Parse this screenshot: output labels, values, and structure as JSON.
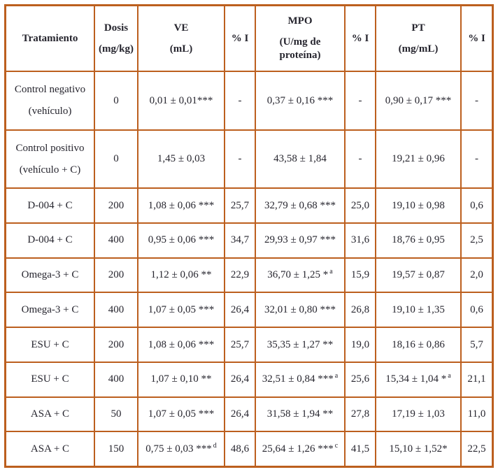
{
  "accent_color": "#bc5f1e",
  "text_color": "#26252e",
  "table": {
    "headers": [
      {
        "line1": "Tratamiento",
        "line2": ""
      },
      {
        "line1": "Dosis",
        "line2": "(mg/kg)"
      },
      {
        "line1": "VE",
        "line2": "(mL)"
      },
      {
        "line1": "% I",
        "line2": ""
      },
      {
        "line1": "MPO",
        "line2": "(U/mg de proteína)"
      },
      {
        "line1": "% I",
        "line2": ""
      },
      {
        "line1": "PT",
        "line2": "(mg/mL)"
      },
      {
        "line1": "% I",
        "line2": ""
      }
    ],
    "rows": [
      {
        "name": "Control negativo",
        "name2": "(vehículo)",
        "dose": "0",
        "ve": "0,01 ± 0,01***",
        "ve_sup": "",
        "ve_i": "-",
        "mpo": "0,37 ± 0,16 ***",
        "mpo_sup": "",
        "mpo_i": "-",
        "pt": "0,90 ± 0,17 ***",
        "pt_sup": "",
        "pt_i": "-"
      },
      {
        "name": "Control positivo",
        "name2": "(vehículo + C)",
        "dose": "0",
        "ve": "1,45 ± 0,03",
        "ve_sup": "",
        "ve_i": "-",
        "mpo": "43,58 ± 1,84",
        "mpo_sup": "",
        "mpo_i": "-",
        "pt": "19,21 ± 0,96",
        "pt_sup": "",
        "pt_i": "-"
      },
      {
        "name": "D-004 + C",
        "name2": "",
        "dose": "200",
        "ve": "1,08 ± 0,06 ***",
        "ve_sup": "",
        "ve_i": "25,7",
        "mpo": "32,79 ± 0,68 ***",
        "mpo_sup": "",
        "mpo_i": "25,0",
        "pt": "19,10 ± 0,98",
        "pt_sup": "",
        "pt_i": "0,6"
      },
      {
        "name": "D-004 + C",
        "name2": "",
        "dose": "400",
        "ve": "0,95 ± 0,06 ***",
        "ve_sup": "",
        "ve_i": "34,7",
        "mpo": "29,93 ± 0,97 ***",
        "mpo_sup": "",
        "mpo_i": "31,6",
        "pt": "18,76 ± 0,95",
        "pt_sup": "",
        "pt_i": "2,5"
      },
      {
        "name": "Omega-3 + C",
        "name2": "",
        "dose": "200",
        "ve": "1,12 ± 0,06 **",
        "ve_sup": "",
        "ve_i": "22,9",
        "mpo": "36,70 ± 1,25 *",
        "mpo_sup": "a",
        "mpo_i": "15,9",
        "pt": "19,57 ± 0,87",
        "pt_sup": "",
        "pt_i": "2,0"
      },
      {
        "name": "Omega-3 + C",
        "name2": "",
        "dose": "400",
        "ve": "1,07 ± 0,05 ***",
        "ve_sup": "",
        "ve_i": "26,4",
        "mpo": "32,01 ± 0,80 ***",
        "mpo_sup": "",
        "mpo_i": "26,8",
        "pt": "19,10 ± 1,35",
        "pt_sup": "",
        "pt_i": "0,6"
      },
      {
        "name": "ESU + C",
        "name2": "",
        "dose": "200",
        "ve": "1,08 ± 0,06 ***",
        "ve_sup": "",
        "ve_i": "25,7",
        "mpo": "35,35 ± 1,27 **",
        "mpo_sup": "",
        "mpo_i": "19,0",
        "pt": "18,16 ± 0,86",
        "pt_sup": "",
        "pt_i": "5,7"
      },
      {
        "name": "ESU + C",
        "name2": "",
        "dose": "400",
        "ve": "1,07 ± 0,10 **",
        "ve_sup": "",
        "ve_i": "26,4",
        "mpo": "32,51 ± 0,84 ***",
        "mpo_sup": "a",
        "mpo_i": "25,6",
        "pt": "15,34 ± 1,04 *",
        "pt_sup": "a",
        "pt_i": "21,1"
      },
      {
        "name": "ASA + C",
        "name2": "",
        "dose": "50",
        "ve": "1,07 ± 0,05 ***",
        "ve_sup": "",
        "ve_i": "26,4",
        "mpo": "31,58 ± 1,94 **",
        "mpo_sup": "",
        "mpo_i": "27,8",
        "pt": "17,19 ± 1,03",
        "pt_sup": "",
        "pt_i": "11,0"
      },
      {
        "name": "ASA + C",
        "name2": "",
        "dose": "150",
        "ve": "0,75 ± 0,03 ***",
        "ve_sup": "d",
        "ve_i": "48,6",
        "mpo": "25,64 ± 1,26 ***",
        "mpo_sup": "c",
        "mpo_i": "41,5",
        "pt": "15,10 ± 1,52*",
        "pt_sup": "",
        "pt_i": "22,5"
      }
    ]
  }
}
